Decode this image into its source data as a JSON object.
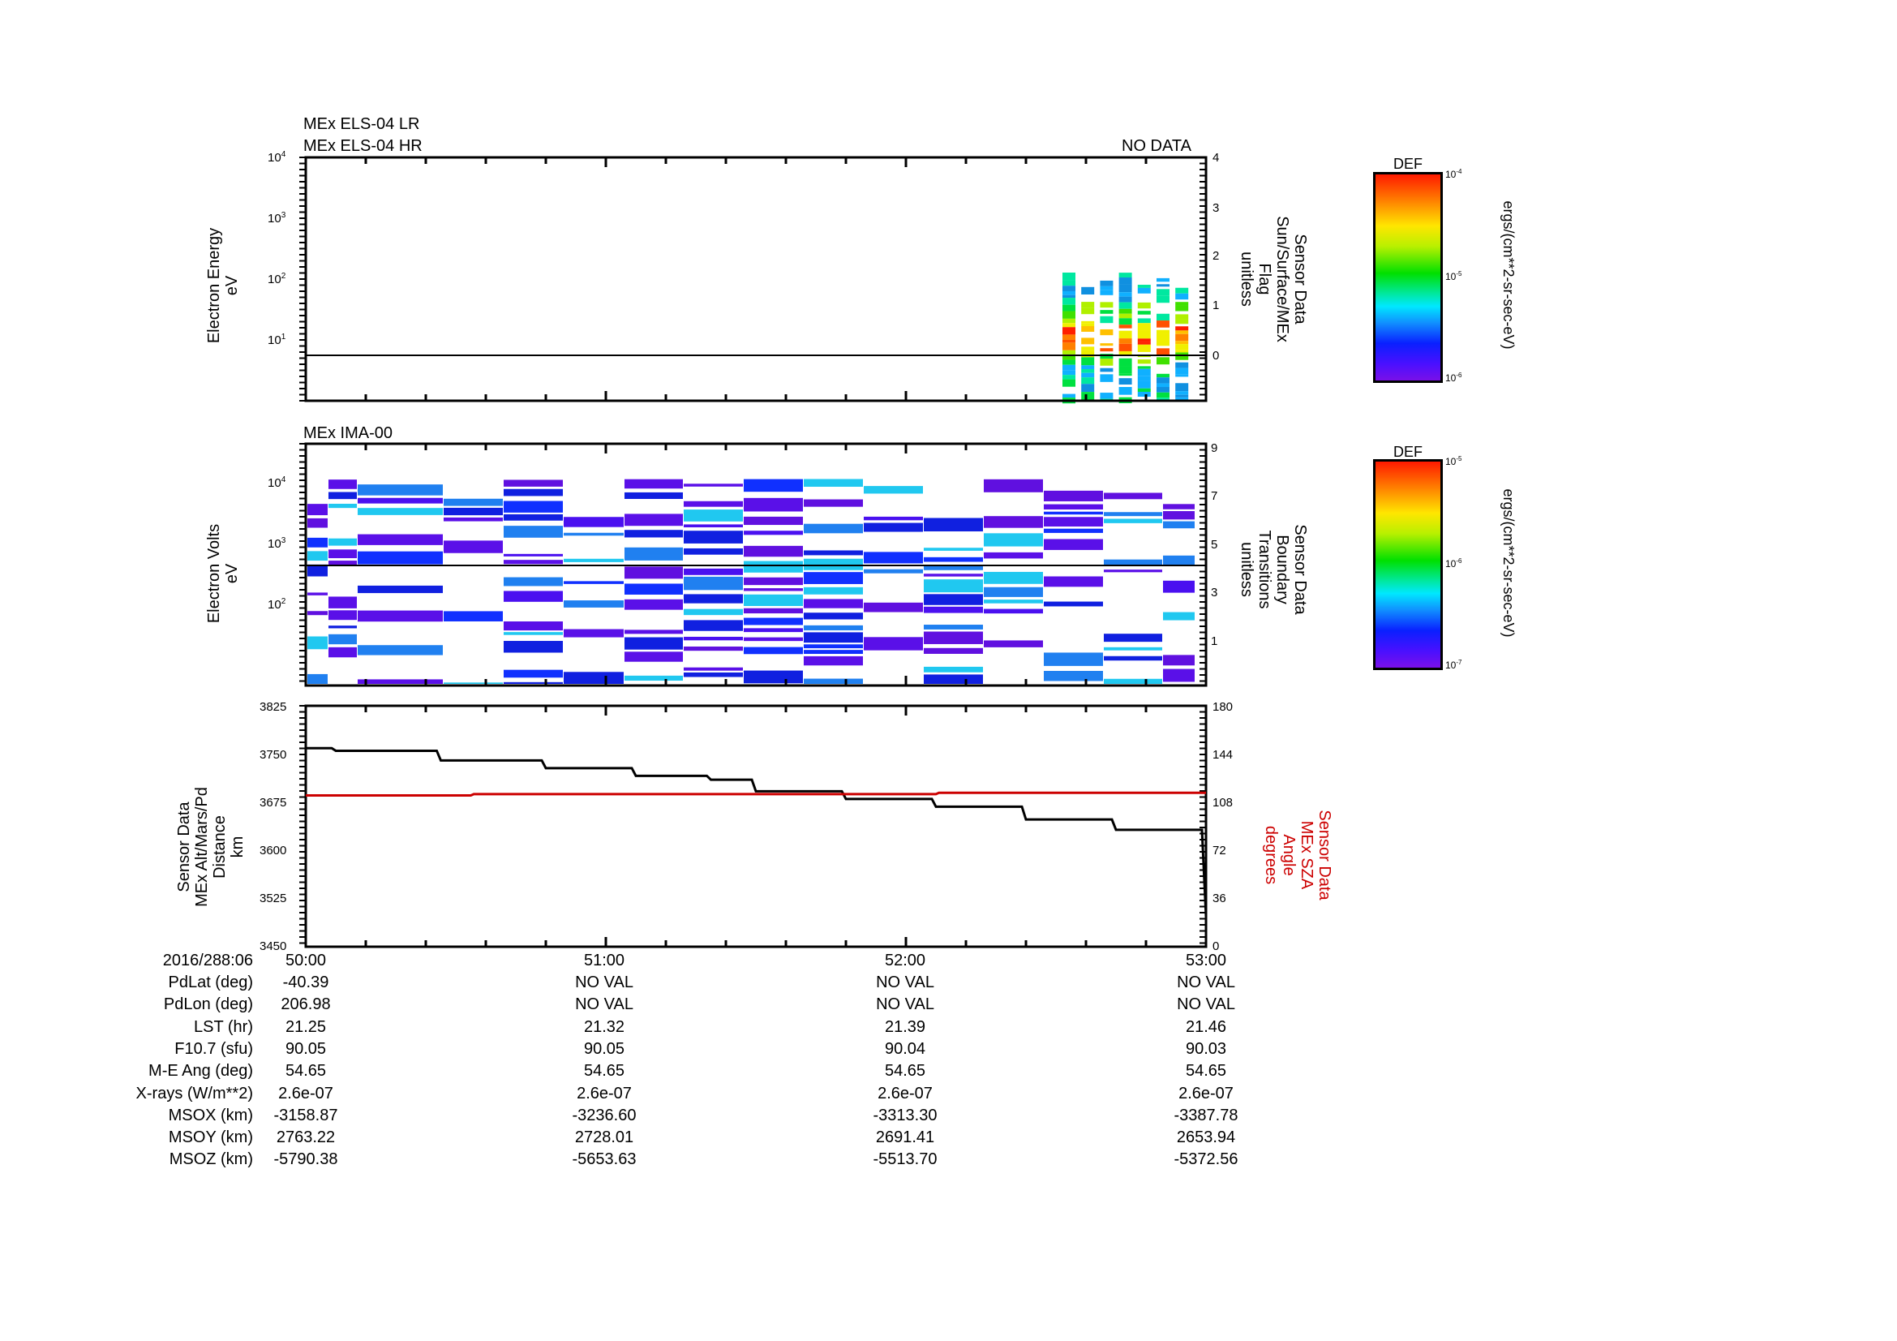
{
  "panels": {
    "top": {
      "title_lines": [
        "MEx ELS-04 LR",
        "MEx ELS-04 HR"
      ],
      "status": "NO DATA",
      "left_axis": {
        "label_lines": [
          "Electron Energy",
          "eV"
        ],
        "ticks": [
          "10^4",
          "10^3",
          "10^2",
          "10^1"
        ],
        "scale": "log"
      },
      "right_axis": {
        "label_lines": [
          "Sensor Data",
          "Sun/Surface/MEx",
          "Flag",
          "unitless"
        ],
        "ticks": [
          "4",
          "3",
          "2",
          "1",
          "0"
        ]
      },
      "colorbar": {
        "title": "DEF",
        "max": "10^-4",
        "mid": "10^-5",
        "min": "10^-6",
        "units": "ergs/(cm**2-sr-sec-eV)"
      }
    },
    "middle": {
      "title": "MEx IMA-00",
      "left_axis": {
        "label_lines": [
          "Electron Volts",
          "eV"
        ],
        "ticks": [
          "10^4",
          "10^3",
          "10^2"
        ],
        "scale": "log"
      },
      "right_axis": {
        "label_lines": [
          "Sensor Data",
          "Boundary",
          "Transitions",
          "unitless"
        ],
        "ticks": [
          "9",
          "7",
          "5",
          "3",
          "1"
        ]
      },
      "colorbar": {
        "title": "DEF",
        "max": "10^-5",
        "mid": "10^-6",
        "min": "10^-7",
        "units": "ergs/(cm**2-sr-sec-eV)"
      }
    },
    "bottom": {
      "left_axis": {
        "label_lines": [
          "Sensor Data",
          "MEx Alt/Mars/Pd",
          "Distance",
          "km"
        ],
        "ticks": [
          "3825",
          "3750",
          "3675",
          "3600",
          "3525",
          "3450"
        ]
      },
      "right_axis": {
        "label_lines": [
          "Sensor Data",
          "MEx SZA",
          "Angle",
          "degrees"
        ],
        "ticks": [
          "180",
          "144",
          "108",
          "72",
          "36",
          "0"
        ],
        "color": "#cc0000"
      }
    }
  },
  "time_axis": {
    "epoch_label": "2016/288:06",
    "ticks": [
      "50:00",
      "51:00",
      "52:00",
      "53:00"
    ]
  },
  "annotations": {
    "rows": [
      {
        "label": "PdLat (deg)",
        "values": [
          "-40.39",
          "NO VAL",
          "NO VAL",
          "NO VAL"
        ]
      },
      {
        "label": "PdLon (deg)",
        "values": [
          "206.98",
          "NO VAL",
          "NO VAL",
          "NO VAL"
        ]
      },
      {
        "label": "LST (hr)",
        "values": [
          "21.25",
          "21.32",
          "21.39",
          "21.46"
        ]
      },
      {
        "label": "F10.7 (sfu)",
        "values": [
          "90.05",
          "90.05",
          "90.04",
          "90.03"
        ]
      },
      {
        "label": "M-E Ang (deg)",
        "values": [
          "54.65",
          "54.65",
          "54.65",
          "54.65"
        ]
      },
      {
        "label": "X-rays (W/m**2)",
        "values": [
          "2.6e-07",
          "2.6e-07",
          "2.6e-07",
          "2.6e-07"
        ]
      },
      {
        "label": "MSOX (km)",
        "values": [
          "-3158.87",
          "-3236.60",
          "-3313.30",
          "-3387.78"
        ]
      },
      {
        "label": "MSOY (km)",
        "values": [
          "2763.22",
          "2728.01",
          "2691.41",
          "2653.94"
        ]
      },
      {
        "label": "MSOZ (km)",
        "values": [
          "-5790.38",
          "-5653.63",
          "-5513.70",
          "-5372.56"
        ]
      }
    ]
  },
  "chart_data": [
    {
      "type": "heatmap",
      "title": "MEx ELS-04 LR / MEx ELS-04 HR",
      "xlabel": "2016/288:06 (mm:ss)",
      "ylabel": "Electron Energy (eV)",
      "y2label": "Sensor Data Sun/Surface/MEx Flag (unitless)",
      "x_ticks": [
        "50:00",
        "51:00",
        "52:00",
        "53:00"
      ],
      "y_range_log10": [
        0.3,
        4
      ],
      "y2_range": [
        -0.9,
        4
      ],
      "y2_flag_value": 0,
      "colorbar": {
        "label": "DEF",
        "range": [
          "1e-6",
          "1e-4"
        ],
        "units": "ergs/(cm**2-sr-sec-eV)"
      },
      "data_columns": 7,
      "data_time_start": "52:32",
      "data_time_end": "53:00",
      "peak_energy_eV": "~10-20",
      "annotation": "NO DATA"
    },
    {
      "type": "heatmap",
      "title": "MEx IMA-00",
      "xlabel": "2016/288:06 (mm:ss)",
      "ylabel": "Electron Volts (eV)",
      "y2label": "Sensor Data Boundary Transitions (unitless)",
      "x_ticks": [
        "50:00",
        "51:00",
        "52:00",
        "53:00"
      ],
      "y2_range": [
        -0.8,
        9
      ],
      "y2_boundary_value": 4,
      "colorbar": {
        "label": "DEF",
        "range": [
          "1e-7",
          "1e-5"
        ],
        "units": "ergs/(cm**2-sr-sec-eV)"
      },
      "data_columns": 16,
      "dominant_level": "~1e-7 (purple/blue)"
    },
    {
      "type": "line",
      "xlabel": "2016/288:06 (mm:ss)",
      "x_ticks": [
        "50:00",
        "51:00",
        "52:00",
        "53:00"
      ],
      "ylabel": "Sensor Data MEx Alt/Mars/Pd Distance (km)",
      "ylim": [
        3450,
        3825
      ],
      "y2label": "Sensor Data MEx SZA Angle (degrees)",
      "y2lim": [
        0,
        180
      ],
      "grid": false,
      "series": [
        {
          "name": "MEx Alt/Mars/Pd Distance",
          "axis": "left",
          "color": "#000000",
          "x_min": [
            0,
            0.1,
            0.45,
            0.8,
            1.1,
            1.35,
            1.5,
            1.8,
            2.1,
            2.4,
            2.7,
            3.0
          ],
          "values": [
            3759,
            3755,
            3740,
            3728,
            3716,
            3710,
            3692,
            3680,
            3668,
            3648,
            3632,
            3497
          ]
        },
        {
          "name": "MEx SZA Angle",
          "axis": "right",
          "color": "#cc0000",
          "x_min": [
            0,
            0.55,
            0.56,
            2.1,
            2.11,
            3.0
          ],
          "values": [
            113,
            113,
            114,
            114,
            115,
            115
          ]
        }
      ]
    }
  ]
}
